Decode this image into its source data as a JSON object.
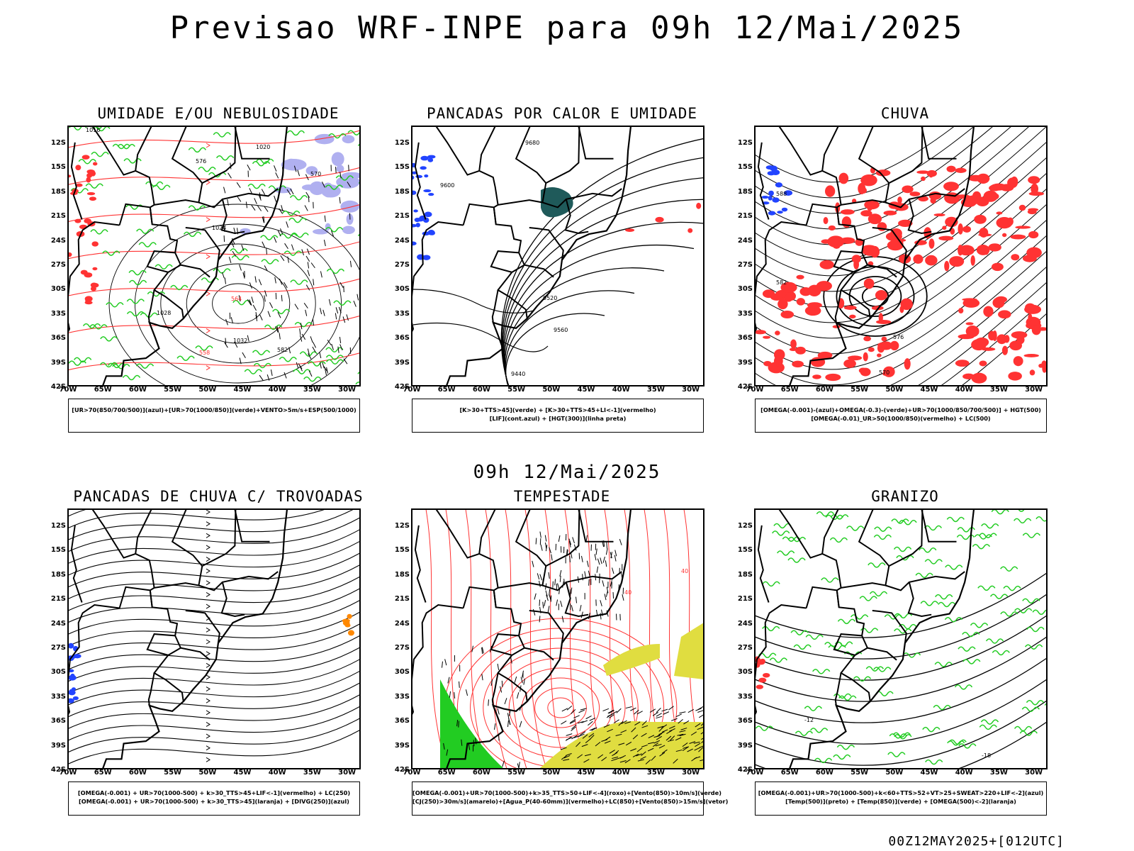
{
  "main_title": "Previsao WRF-INPE  para 09h 12/Mai/2025",
  "mid_title": "09h 12/Mai/2025",
  "footer": "00Z12MAY2025+[012UTC]",
  "axes": {
    "lat_ticks": [
      "12S",
      "15S",
      "18S",
      "21S",
      "24S",
      "27S",
      "30S",
      "33S",
      "36S",
      "39S",
      "42S"
    ],
    "lon_ticks": [
      "70W",
      "65W",
      "60W",
      "55W",
      "50W",
      "45W",
      "40W",
      "35W",
      "30W"
    ]
  },
  "colors": {
    "green": "#22cc22",
    "red": "#ff3333",
    "blue": "#2244ff",
    "teal": "#1f5a5a",
    "yellow": "#e0dd40",
    "lavender": "#b0b0f0",
    "orange": "#ff8800"
  },
  "panels": [
    {
      "title": "UMIDADE E/OU NEBULOSIDADE",
      "legend": [
        "[UR>70(850/700/500)](azul)+[UR>70(1000/850)](verde)+VENTO>5m/s+ESP(500/1000)"
      ],
      "contour_labels": [
        "1016",
        "1020",
        "1024",
        "1028",
        "1032",
        "570",
        "576",
        "582",
        "564",
        "558"
      ]
    },
    {
      "title": "PANCADAS POR CALOR E UMIDADE",
      "legend": [
        "[K>30+TTS>45](verde) + [K>30+TTS>45+LI<-1](vermelho)",
        "[LIF](cont.azul) + [HGT(300)](linha preta)"
      ],
      "contour_labels": [
        "9680",
        "9600",
        "9520",
        "9440",
        "9560"
      ]
    },
    {
      "title": "CHUVA",
      "legend": [
        "[OMEGA(-0.001)-(azul)+OMEGA(-0.3)-(verde)+UR>70(1000/850/700/500)] + HGT(500)",
        "[OMEGA(-0.01)_UR>50(1000/850)(vermelho) + LC(500)"
      ],
      "contour_labels": [
        "588",
        "582",
        "576",
        "570"
      ]
    },
    {
      "title": "PANCADAS DE CHUVA C/ TROVOADAS",
      "legend": [
        "[OMEGA(-0.001) + UR>70(1000-500) + k>30_TTS>45+LIF<-1](vermelho) + LC(250)",
        "[OMEGA(-0.001) + UR>70(1000-500) + k>30_TTS>45](laranja) + [DIVG(250)](azul)"
      ],
      "contour_labels": []
    },
    {
      "title": "TEMPESTADE",
      "legend": [
        "[OMEGA(-0.001)+UR>70(1000-500)+k>35_TTS>50+LIF<-4](roxo)+[Vento(850)>10m/s](verde)",
        "[CJ(250)>30m/s](amarelo)+[Agua_P(40-60mm)](vermelho)+LC(850)+[Vento(850)>15m/s](vetor)"
      ],
      "contour_labels": [
        "40",
        "40"
      ]
    },
    {
      "title": "GRANIZO",
      "legend": [
        "[OMEGA(-0.001)+UR>70(1000-500)+k<60+TTS>52+VT>25+SWEAT>220+LIF<-2](azul)",
        "[Temp(500)](preto) + [Temp(850)](verde) + [OMEGA(500)<-2](laranja)"
      ],
      "contour_labels": [
        "-12",
        "-18"
      ]
    }
  ]
}
